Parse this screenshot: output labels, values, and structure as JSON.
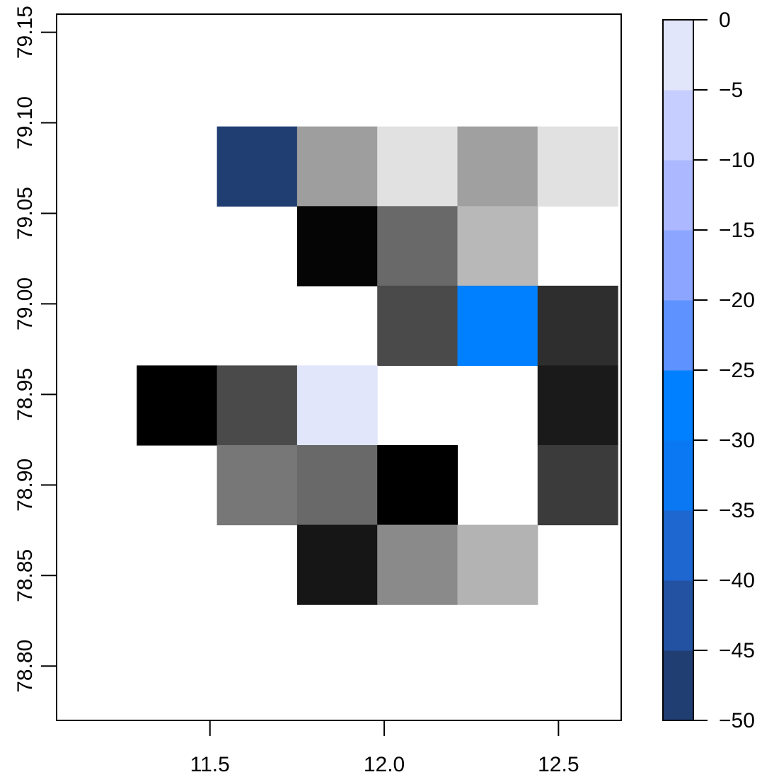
{
  "chart_data": {
    "type": "heatmap",
    "title": "",
    "xlabel": "",
    "ylabel": "",
    "xlim": [
      11.06,
      12.68
    ],
    "ylim": [
      78.77,
      79.16
    ],
    "x_ticks": [
      "11.5",
      "12.0",
      "12.5"
    ],
    "x_tick_values": [
      11.5,
      12.0,
      12.5
    ],
    "y_ticks": [
      "78.80",
      "78.85",
      "78.90",
      "78.95",
      "79.00",
      "79.05",
      "79.10",
      "79.15"
    ],
    "y_tick_values": [
      78.8,
      78.85,
      78.9,
      78.95,
      79.0,
      79.05,
      79.1,
      79.15
    ],
    "cell_width": 0.23,
    "cell_height": 0.044,
    "cells": [
      {
        "x": 11.635,
        "y": 79.076,
        "color": "#213e73"
      },
      {
        "x": 11.865,
        "y": 79.076,
        "color": "#9e9e9e"
      },
      {
        "x": 12.095,
        "y": 79.076,
        "color": "#e1e1e1"
      },
      {
        "x": 12.325,
        "y": 79.076,
        "color": "#a0a0a0"
      },
      {
        "x": 12.555,
        "y": 79.076,
        "color": "#e1e1e1"
      },
      {
        "x": 11.865,
        "y": 79.032,
        "color": "#050505"
      },
      {
        "x": 12.095,
        "y": 79.032,
        "color": "#696969"
      },
      {
        "x": 12.325,
        "y": 79.032,
        "color": "#b8b8b8"
      },
      {
        "x": 12.095,
        "y": 78.988,
        "color": "#4a4a4a"
      },
      {
        "x": 12.325,
        "y": 78.988,
        "color": "#0080ff"
      },
      {
        "x": 12.555,
        "y": 78.988,
        "color": "#2e2e2e"
      },
      {
        "x": 11.405,
        "y": 78.944,
        "color": "#000000"
      },
      {
        "x": 11.635,
        "y": 78.944,
        "color": "#4a4a4a"
      },
      {
        "x": 11.865,
        "y": 78.944,
        "color": "#e1e6fa"
      },
      {
        "x": 12.555,
        "y": 78.944,
        "color": "#1a1a1a"
      },
      {
        "x": 11.635,
        "y": 78.9,
        "color": "#777777"
      },
      {
        "x": 11.865,
        "y": 78.9,
        "color": "#696969"
      },
      {
        "x": 12.095,
        "y": 78.9,
        "color": "#000000"
      },
      {
        "x": 12.555,
        "y": 78.9,
        "color": "#3b3b3b"
      },
      {
        "x": 11.865,
        "y": 78.856,
        "color": "#161616"
      },
      {
        "x": 12.095,
        "y": 78.856,
        "color": "#8a8a8a"
      },
      {
        "x": 12.325,
        "y": 78.856,
        "color": "#b3b3b3"
      }
    ],
    "colorbar": {
      "range": [
        -50,
        0
      ],
      "ticks": [
        "0",
        "−5",
        "−10",
        "−15",
        "−20",
        "−25",
        "−30",
        "−35",
        "−40",
        "−45",
        "−50"
      ],
      "tick_values": [
        0,
        -5,
        -10,
        -15,
        -20,
        -25,
        -30,
        -35,
        -40,
        -45,
        -50
      ],
      "bands": [
        {
          "from": -50,
          "to": -45,
          "color": "#213e73"
        },
        {
          "from": -45,
          "to": -40,
          "color": "#2452a3"
        },
        {
          "from": -40,
          "to": -35,
          "color": "#1e66d0"
        },
        {
          "from": -35,
          "to": -30,
          "color": "#0a78f2"
        },
        {
          "from": -30,
          "to": -25,
          "color": "#0080ff"
        },
        {
          "from": -25,
          "to": -20,
          "color": "#5e92ff"
        },
        {
          "from": -20,
          "to": -15,
          "color": "#8ca6ff"
        },
        {
          "from": -15,
          "to": -10,
          "color": "#acb8ff"
        },
        {
          "from": -10,
          "to": -5,
          "color": "#c6ceff"
        },
        {
          "from": -5,
          "to": 0,
          "color": "#e1e6fa"
        }
      ]
    }
  }
}
